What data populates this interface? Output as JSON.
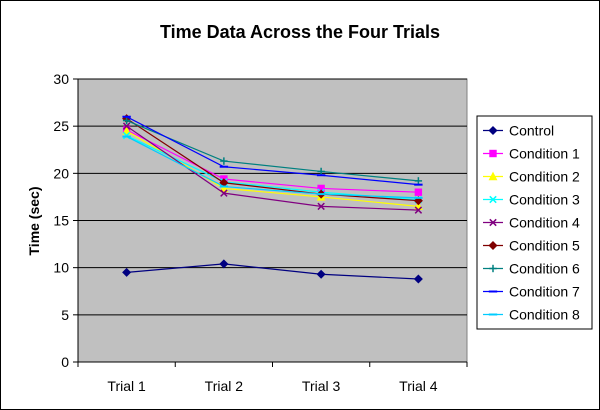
{
  "chart_data": {
    "type": "line",
    "title": "Time Data Across the Four Trials",
    "xlabel": "",
    "ylabel": "Time (sec)",
    "categories": [
      "Trial 1",
      "Trial 2",
      "Trial 3",
      "Trial 4"
    ],
    "ylim": [
      0,
      30
    ],
    "yticks": [
      0,
      5,
      10,
      15,
      20,
      25,
      30
    ],
    "grid": true,
    "legend_position": "right",
    "plot_background": "#c0c0c0",
    "series": [
      {
        "name": "Control",
        "color": "#000080",
        "marker": "diamond",
        "values": [
          9.5,
          10.4,
          9.3,
          8.8
        ]
      },
      {
        "name": "Condition 1",
        "color": "#ff00ff",
        "marker": "square",
        "values": [
          24.6,
          19.4,
          18.4,
          18.0
        ]
      },
      {
        "name": "Condition 2",
        "color": "#ffff00",
        "marker": "triangle",
        "values": [
          24.5,
          18.4,
          17.5,
          16.5
        ]
      },
      {
        "name": "Condition 3",
        "color": "#00ffff",
        "marker": "x",
        "values": [
          24.0,
          19.1,
          18.0,
          17.2
        ]
      },
      {
        "name": "Condition 4",
        "color": "#800080",
        "marker": "x",
        "values": [
          25.0,
          17.9,
          16.5,
          16.1
        ]
      },
      {
        "name": "Condition 5",
        "color": "#800000",
        "marker": "diamond",
        "values": [
          25.8,
          19.0,
          17.8,
          17.1
        ]
      },
      {
        "name": "Condition 6",
        "color": "#008080",
        "marker": "plus",
        "values": [
          25.6,
          21.3,
          20.2,
          19.2
        ]
      },
      {
        "name": "Condition 7",
        "color": "#0000ff",
        "marker": "dash",
        "values": [
          26.0,
          20.7,
          19.8,
          18.8
        ]
      },
      {
        "name": "Condition 8",
        "color": "#00ccff",
        "marker": "dash",
        "values": [
          23.9,
          18.6,
          17.8,
          17.4
        ]
      }
    ]
  }
}
